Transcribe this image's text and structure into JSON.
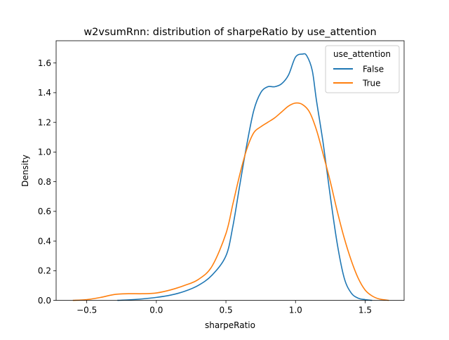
{
  "chart_data": {
    "type": "line",
    "title": "w2vsumRnn: distribution of sharpeRatio by use_attention",
    "xlabel": "sharpeRatio",
    "ylabel": "Density",
    "xlim": [
      -0.72,
      1.78
    ],
    "ylim": [
      0,
      1.75
    ],
    "xticks": [
      -0.5,
      0.0,
      0.5,
      1.0,
      1.5
    ],
    "xtick_labels": [
      "−0.5",
      "0.0",
      "0.5",
      "1.0",
      "1.5"
    ],
    "yticks": [
      0.0,
      0.2,
      0.4,
      0.6,
      0.8,
      1.0,
      1.2,
      1.4,
      1.6
    ],
    "ytick_labels": [
      "0.0",
      "0.2",
      "0.4",
      "0.6",
      "0.8",
      "1.0",
      "1.2",
      "1.4",
      "1.6"
    ],
    "grid": false,
    "legend": {
      "title": "use_attention",
      "placement": "top-right"
    },
    "series": [
      {
        "name": "False",
        "color": "#1f77b4",
        "x": [
          -0.28,
          -0.2,
          -0.1,
          0.0,
          0.1,
          0.2,
          0.3,
          0.4,
          0.5,
          0.55,
          0.6,
          0.65,
          0.7,
          0.75,
          0.8,
          0.85,
          0.9,
          0.95,
          1.0,
          1.05,
          1.08,
          1.12,
          1.15,
          1.2,
          1.25,
          1.3,
          1.35,
          1.4,
          1.45,
          1.5,
          1.55
        ],
        "y": [
          0.0,
          0.003,
          0.01,
          0.02,
          0.035,
          0.06,
          0.1,
          0.17,
          0.3,
          0.5,
          0.78,
          1.05,
          1.28,
          1.4,
          1.44,
          1.44,
          1.46,
          1.52,
          1.64,
          1.66,
          1.65,
          1.55,
          1.35,
          1.05,
          0.7,
          0.38,
          0.15,
          0.05,
          0.015,
          0.005,
          0.0
        ]
      },
      {
        "name": "True",
        "color": "#ff7f0e",
        "x": [
          -0.6,
          -0.5,
          -0.4,
          -0.3,
          -0.2,
          -0.1,
          0.0,
          0.1,
          0.2,
          0.3,
          0.4,
          0.5,
          0.55,
          0.6,
          0.65,
          0.7,
          0.75,
          0.8,
          0.85,
          0.9,
          0.95,
          1.0,
          1.05,
          1.1,
          1.15,
          1.2,
          1.25,
          1.3,
          1.35,
          1.4,
          1.45,
          1.5,
          1.55,
          1.6,
          1.67
        ],
        "y": [
          0.0,
          0.005,
          0.02,
          0.04,
          0.045,
          0.045,
          0.05,
          0.07,
          0.1,
          0.14,
          0.23,
          0.45,
          0.65,
          0.85,
          1.02,
          1.13,
          1.17,
          1.2,
          1.23,
          1.27,
          1.31,
          1.33,
          1.32,
          1.27,
          1.15,
          0.98,
          0.8,
          0.6,
          0.42,
          0.27,
          0.15,
          0.07,
          0.03,
          0.01,
          0.0
        ]
      }
    ]
  }
}
